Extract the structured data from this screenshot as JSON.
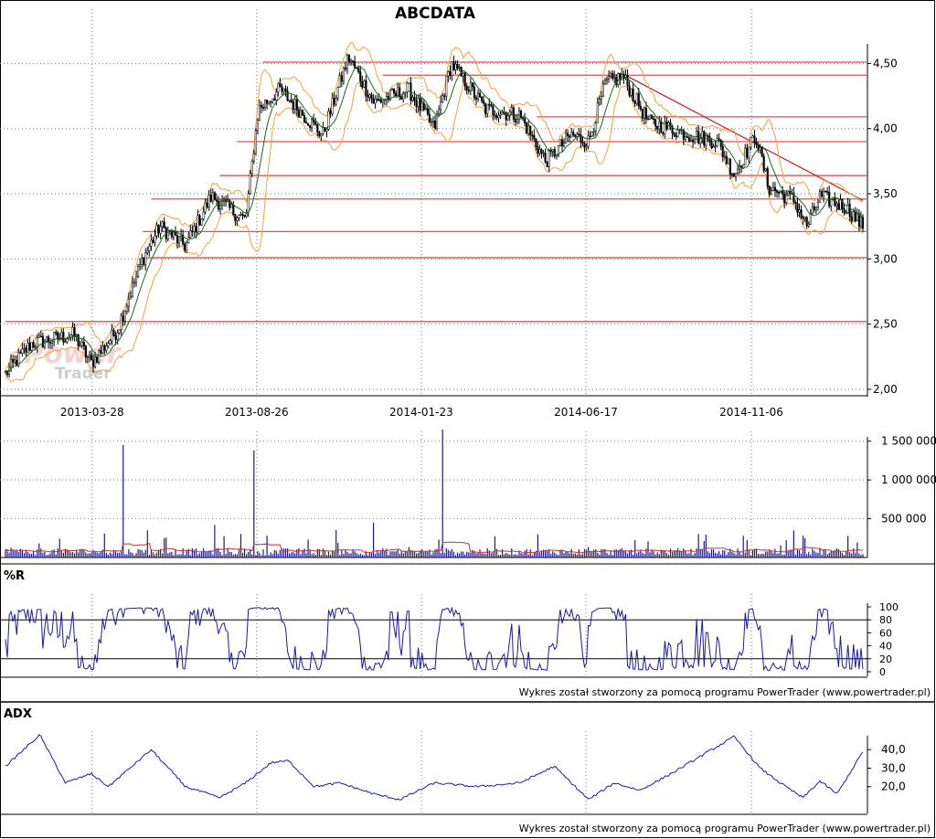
{
  "title": "ABCDATA",
  "credit_text": "Wykres został stworzony za pomocą programu PowerTrader (www.powertrader.pl)",
  "watermark": {
    "line1": "Power",
    "line2": "Trader"
  },
  "colors": {
    "candle": "#000000",
    "ma": "#1a6b1a",
    "bands": "#f0a040",
    "support_lines": "#e05050",
    "trend_line": "#c02020",
    "volume": "#1a1a8c",
    "volume_ma": "#d03030",
    "oscillator": "#1a1aa0",
    "grid": "#808080"
  },
  "chart_data": [
    {
      "type": "candlestick",
      "title": "ABCDATA",
      "x_tick_labels": [
        "2013-03-28",
        "2013-08-26",
        "2014-01-23",
        "2014-06-17",
        "2014-11-06"
      ],
      "y_tick_labels": [
        "4,50",
        "4,00",
        "3,50",
        "3,00",
        "2,50",
        "2,00"
      ],
      "ylim": [
        2.0,
        4.65
      ],
      "overlays": [
        "moving average",
        "price bands"
      ],
      "close_anchors": [
        {
          "t": 0.0,
          "v": 2.12
        },
        {
          "t": 0.03,
          "v": 2.35
        },
        {
          "t": 0.08,
          "v": 2.42
        },
        {
          "t": 0.1,
          "v": 2.2
        },
        {
          "t": 0.13,
          "v": 2.45
        },
        {
          "t": 0.16,
          "v": 3.0
        },
        {
          "t": 0.18,
          "v": 3.25
        },
        {
          "t": 0.21,
          "v": 3.1
        },
        {
          "t": 0.24,
          "v": 3.48
        },
        {
          "t": 0.28,
          "v": 3.3
        },
        {
          "t": 0.295,
          "v": 4.15
        },
        {
          "t": 0.32,
          "v": 4.3
        },
        {
          "t": 0.37,
          "v": 3.95
        },
        {
          "t": 0.4,
          "v": 4.55
        },
        {
          "t": 0.43,
          "v": 4.2
        },
        {
          "t": 0.47,
          "v": 4.3
        },
        {
          "t": 0.5,
          "v": 4.0
        },
        {
          "t": 0.52,
          "v": 4.5
        },
        {
          "t": 0.56,
          "v": 4.15
        },
        {
          "t": 0.6,
          "v": 4.1
        },
        {
          "t": 0.63,
          "v": 3.75
        },
        {
          "t": 0.66,
          "v": 3.95
        },
        {
          "t": 0.68,
          "v": 3.9
        },
        {
          "t": 0.7,
          "v": 4.35
        },
        {
          "t": 0.72,
          "v": 4.4
        },
        {
          "t": 0.75,
          "v": 4.05
        },
        {
          "t": 0.8,
          "v": 3.95
        },
        {
          "t": 0.83,
          "v": 3.9
        },
        {
          "t": 0.85,
          "v": 3.65
        },
        {
          "t": 0.875,
          "v": 3.95
        },
        {
          "t": 0.89,
          "v": 3.55
        },
        {
          "t": 0.92,
          "v": 3.45
        },
        {
          "t": 0.935,
          "v": 3.25
        },
        {
          "t": 0.95,
          "v": 3.48
        },
        {
          "t": 0.98,
          "v": 3.4
        },
        {
          "t": 1.0,
          "v": 3.25
        }
      ],
      "horizontal_levels": [
        {
          "v": 4.51,
          "from": 0.3
        },
        {
          "v": 4.41,
          "from": 0.44
        },
        {
          "v": 4.09,
          "from": 0.62
        },
        {
          "v": 3.9,
          "from": 0.27
        },
        {
          "v": 3.64,
          "from": 0.25
        },
        {
          "v": 3.46,
          "from": 0.17
        },
        {
          "v": 3.21,
          "from": 0.16
        },
        {
          "v": 3.01,
          "from": 0.16
        },
        {
          "v": 2.52,
          "from": 0.0
        }
      ],
      "trend_line": {
        "from": {
          "t": 0.72,
          "v": 4.42
        },
        "to": {
          "t": 1.0,
          "v": 3.45
        }
      }
    },
    {
      "type": "bar",
      "series_name": "Volume",
      "y_tick_labels": [
        "1 500 000",
        "1 000 000",
        "500 000"
      ],
      "ylim": [
        0,
        1650000
      ],
      "spikes": [
        {
          "t": 0.138,
          "v": 1450000
        },
        {
          "t": 0.29,
          "v": 1380000
        },
        {
          "t": 0.51,
          "v": 1650000
        },
        {
          "t": 0.245,
          "v": 420000
        },
        {
          "t": 0.43,
          "v": 450000
        },
        {
          "t": 0.165,
          "v": 350000
        },
        {
          "t": 0.93,
          "v": 280000
        },
        {
          "t": 0.62,
          "v": 300000
        }
      ]
    },
    {
      "type": "line",
      "title": "%R",
      "y_tick_labels": [
        "100",
        "80",
        "60",
        "40",
        "20",
        "0"
      ],
      "ylim": [
        0,
        100
      ],
      "reference_lines": [
        80,
        20
      ]
    },
    {
      "type": "line",
      "title": "ADX",
      "y_tick_labels": [
        "40,0",
        "30,0",
        "20,0"
      ],
      "ylim": [
        8,
        50
      ],
      "anchors": [
        {
          "t": 0.0,
          "v": 31
        },
        {
          "t": 0.04,
          "v": 48
        },
        {
          "t": 0.07,
          "v": 22
        },
        {
          "t": 0.1,
          "v": 27
        },
        {
          "t": 0.12,
          "v": 20
        },
        {
          "t": 0.17,
          "v": 40
        },
        {
          "t": 0.21,
          "v": 20
        },
        {
          "t": 0.25,
          "v": 14
        },
        {
          "t": 0.28,
          "v": 22
        },
        {
          "t": 0.31,
          "v": 33
        },
        {
          "t": 0.33,
          "v": 34
        },
        {
          "t": 0.36,
          "v": 20
        },
        {
          "t": 0.39,
          "v": 22
        },
        {
          "t": 0.43,
          "v": 16
        },
        {
          "t": 0.46,
          "v": 13
        },
        {
          "t": 0.5,
          "v": 22
        },
        {
          "t": 0.55,
          "v": 20
        },
        {
          "t": 0.6,
          "v": 22
        },
        {
          "t": 0.64,
          "v": 31
        },
        {
          "t": 0.68,
          "v": 13
        },
        {
          "t": 0.71,
          "v": 22
        },
        {
          "t": 0.74,
          "v": 18
        },
        {
          "t": 0.78,
          "v": 28
        },
        {
          "t": 0.82,
          "v": 39
        },
        {
          "t": 0.85,
          "v": 47
        },
        {
          "t": 0.88,
          "v": 30
        },
        {
          "t": 0.91,
          "v": 20
        },
        {
          "t": 0.93,
          "v": 14
        },
        {
          "t": 0.95,
          "v": 23
        },
        {
          "t": 0.97,
          "v": 16
        },
        {
          "t": 1.0,
          "v": 39
        }
      ]
    }
  ]
}
